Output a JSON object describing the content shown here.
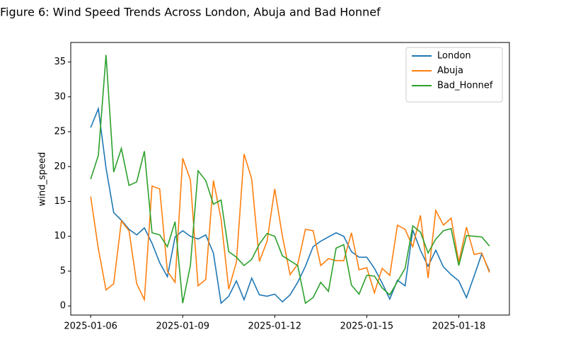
{
  "chart_data": {
    "type": "line",
    "title": "Figure 6: Wind Speed Trends Across London, Abuja and Bad Honnef",
    "y_label": "wind_speed",
    "categories": [
      "2025-01-06",
      null,
      null,
      null,
      null,
      null,
      null,
      null,
      null,
      null,
      null,
      null,
      "2025-01-09",
      null,
      null,
      null,
      null,
      null,
      null,
      null,
      null,
      null,
      null,
      null,
      "2025-01-12",
      null,
      null,
      null,
      null,
      null,
      null,
      null,
      null,
      null,
      null,
      null,
      "2025-01-15",
      null,
      null,
      null,
      null,
      null,
      null,
      null,
      null,
      null,
      null,
      null,
      "2025-01-18",
      null,
      null,
      null,
      null
    ],
    "series": [
      {
        "name": "London",
        "color": "#1f77b4",
        "values": [
          25.6,
          28.3,
          19.8,
          13.4,
          12.3,
          11.0,
          10.2,
          11.2,
          9.0,
          6.2,
          4.2,
          9.9,
          10.8,
          10.0,
          9.6,
          10.2,
          7.6,
          0.4,
          1.4,
          3.6,
          0.9,
          4.0,
          1.6,
          1.4,
          1.7,
          0.6,
          1.6,
          3.4,
          5.7,
          8.5,
          9.3,
          9.9,
          10.5,
          10.0,
          7.8,
          7.0,
          7.0,
          5.4,
          3.3,
          1.0,
          3.7,
          2.9,
          10.9,
          8.0,
          5.7,
          8.0,
          5.6,
          4.5,
          3.6,
          1.2,
          4.3,
          7.5,
          5.0
        ]
      },
      {
        "name": "Abuja",
        "color": "#ff7f0e",
        "values": [
          15.7,
          8.2,
          2.3,
          3.2,
          12.2,
          10.8,
          3.2,
          0.9,
          17.2,
          16.8,
          5.0,
          3.4,
          21.2,
          18.1,
          2.9,
          3.8,
          18.0,
          12.5,
          2.4,
          6.3,
          21.8,
          18.2,
          6.4,
          9.3,
          16.8,
          10.0,
          4.5,
          6.0,
          11.0,
          10.8,
          5.8,
          6.8,
          6.5,
          6.5,
          10.5,
          5.2,
          5.5,
          1.9,
          5.4,
          4.4,
          11.6,
          11.0,
          8.5,
          13.0,
          4.0,
          13.7,
          11.6,
          12.6,
          6.3,
          11.3,
          7.4,
          7.6,
          4.8
        ]
      },
      {
        "name": "Bad_Honnef",
        "color": "#2ca02c",
        "values": [
          18.2,
          21.6,
          36.0,
          19.2,
          22.6,
          17.3,
          17.8,
          22.2,
          10.5,
          10.2,
          8.5,
          12.1,
          0.4,
          5.8,
          19.4,
          18.0,
          14.6,
          15.2,
          7.8,
          7.0,
          5.8,
          6.7,
          8.9,
          10.4,
          10.0,
          7.2,
          6.5,
          5.8,
          0.4,
          1.2,
          3.4,
          2.1,
          8.3,
          8.8,
          3.0,
          1.7,
          4.4,
          4.3,
          2.6,
          1.6,
          3.5,
          5.4,
          11.5,
          10.6,
          7.6,
          9.6,
          10.8,
          11.1,
          5.8,
          10.1,
          10.0,
          9.9,
          8.6
        ]
      }
    ],
    "ylim": [
      -1.3,
      37.8
    ],
    "yticks": [
      0,
      5,
      10,
      15,
      20,
      25,
      30,
      35
    ],
    "grid": false,
    "legend": "upper right"
  }
}
